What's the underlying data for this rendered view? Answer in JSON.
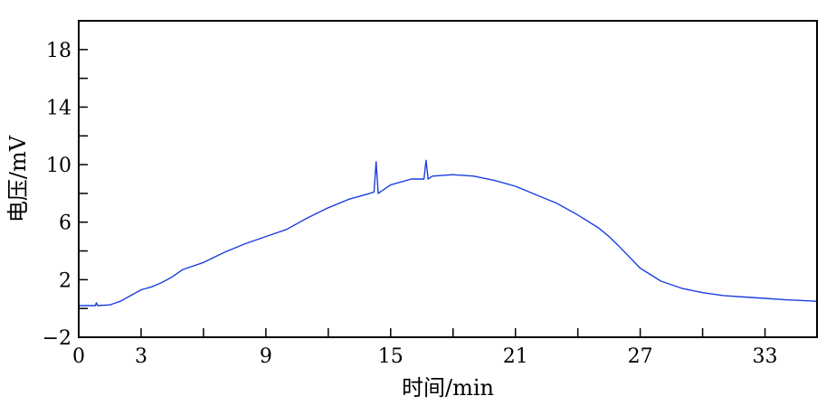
{
  "chart_data": {
    "type": "line",
    "title": "",
    "xlabel": "时间/min",
    "ylabel": "电压/mV",
    "xlim": [
      0,
      35.5
    ],
    "ylim": [
      -2,
      20
    ],
    "x_ticks_labeled": [
      0,
      3,
      9,
      15,
      21,
      27,
      33
    ],
    "x_ticks_minor": [
      6,
      12,
      18,
      24,
      30
    ],
    "y_ticks_labeled": [
      -2,
      2,
      6,
      10,
      14,
      18
    ],
    "y_ticks_minor": [
      0,
      4,
      8,
      12,
      16,
      20
    ],
    "grid": false,
    "legend": "none",
    "series": [
      {
        "color": "#1a3fe0",
        "x": [
          0,
          0.5,
          0.8,
          0.85,
          0.9,
          1.5,
          2,
          2.5,
          3,
          3.5,
          4,
          4.5,
          5,
          5.2,
          6,
          7,
          8,
          9,
          10,
          11,
          12,
          13,
          14,
          14.2,
          14.3,
          14.4,
          15,
          16,
          16.6,
          16.7,
          16.8,
          17,
          18,
          19,
          20,
          21,
          22,
          23,
          24,
          25,
          25.5,
          26,
          27,
          28,
          29,
          30,
          31,
          32,
          33,
          34,
          35.5
        ],
        "y": [
          0.2,
          0.2,
          0.2,
          0.4,
          0.2,
          0.25,
          0.5,
          0.9,
          1.3,
          1.5,
          1.8,
          2.2,
          2.7,
          2.8,
          3.2,
          3.9,
          4.5,
          5.0,
          5.5,
          6.3,
          7.0,
          7.6,
          8.0,
          8.1,
          10.2,
          8.0,
          8.6,
          9.0,
          9.0,
          10.3,
          9.0,
          9.2,
          9.3,
          9.2,
          8.9,
          8.5,
          7.9,
          7.3,
          6.5,
          5.6,
          5.0,
          4.3,
          2.8,
          1.9,
          1.4,
          1.1,
          0.9,
          0.8,
          0.7,
          0.6,
          0.5
        ]
      }
    ]
  }
}
